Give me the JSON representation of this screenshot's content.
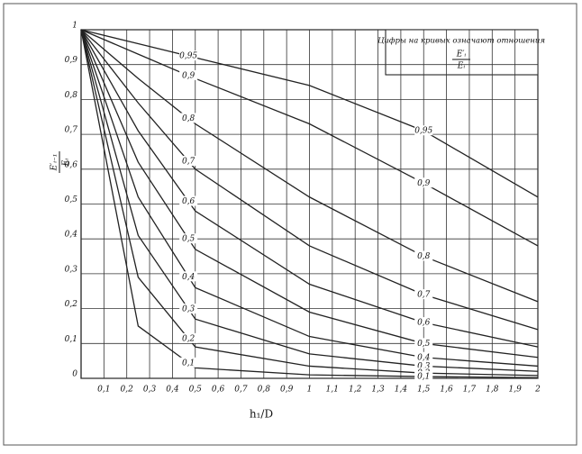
{
  "chart_data": {
    "type": "line",
    "ylabel": {
      "numerator": "E′ᵢ₋₁",
      "denominator": "Eᵢ"
    },
    "xlabel": "h₁/D",
    "annotation": {
      "text": "Цифры на кривых означают отношения",
      "numerator": "E′ᵢ",
      "denominator": "Eᵢ"
    },
    "x": [
      0,
      0.25,
      0.5,
      1,
      1.5,
      2
    ],
    "series": [
      {
        "name": "0,95",
        "color": "#222",
        "values": [
          1,
          0.96,
          0.92,
          0.84,
          0.71,
          0.52
        ]
      },
      {
        "name": "0,9",
        "color": "#222",
        "values": [
          1,
          0.93,
          0.86,
          0.73,
          0.56,
          0.38
        ]
      },
      {
        "name": "0,8",
        "color": "#222",
        "values": [
          1,
          0.86,
          0.73,
          0.52,
          0.35,
          0.22
        ]
      },
      {
        "name": "0,7",
        "color": "#222",
        "values": [
          1,
          0.79,
          0.6,
          0.38,
          0.24,
          0.14
        ]
      },
      {
        "name": "0,6",
        "color": "#222",
        "values": [
          1,
          0.71,
          0.48,
          0.27,
          0.16,
          0.09
        ]
      },
      {
        "name": "0,5",
        "color": "#222",
        "values": [
          1,
          0.62,
          0.37,
          0.19,
          0.1,
          0.06
        ]
      },
      {
        "name": "0,4",
        "color": "#222",
        "values": [
          1,
          0.52,
          0.26,
          0.12,
          0.06,
          0.035
        ]
      },
      {
        "name": "0,3",
        "color": "#222",
        "values": [
          1,
          0.41,
          0.17,
          0.07,
          0.035,
          0.02
        ]
      },
      {
        "name": "0,2",
        "color": "#222",
        "values": [
          1,
          0.29,
          0.09,
          0.035,
          0.015,
          0.008
        ]
      },
      {
        "name": "0,1",
        "color": "#222",
        "values": [
          1,
          0.15,
          0.03,
          0.01,
          0.005,
          0.002
        ]
      }
    ],
    "xlim": [
      0,
      2
    ],
    "ylim": [
      0,
      1
    ],
    "xticks": [
      {
        "value": 0.1,
        "label": "0,1"
      },
      {
        "value": 0.2,
        "label": "0,2"
      },
      {
        "value": 0.3,
        "label": "0,3"
      },
      {
        "value": 0.4,
        "label": "0,4"
      },
      {
        "value": 0.5,
        "label": "0,5"
      },
      {
        "value": 0.6,
        "label": "0,6"
      },
      {
        "value": 0.7,
        "label": "0,7"
      },
      {
        "value": 0.8,
        "label": "0,8"
      },
      {
        "value": 0.9,
        "label": "0,9"
      },
      1,
      {
        "value": 1.1,
        "label": "1,1"
      },
      {
        "value": 1.2,
        "label": "1,2"
      },
      {
        "value": 1.3,
        "label": "1,3"
      },
      {
        "value": 1.4,
        "label": "1,4"
      },
      {
        "value": 1.5,
        "label": "1,5"
      },
      {
        "value": 1.6,
        "label": "1,6"
      },
      {
        "value": 1.7,
        "label": "1,7"
      },
      {
        "value": 1.8,
        "label": "1,8"
      },
      {
        "value": 1.9,
        "label": "1,9"
      },
      2
    ],
    "yticks": [
      0,
      {
        "value": 0.1,
        "label": "0,1"
      },
      {
        "value": 0.2,
        "label": "0,2"
      },
      {
        "value": 0.3,
        "label": "0,3"
      },
      {
        "value": 0.4,
        "label": "0,4"
      },
      {
        "value": 0.5,
        "label": "0,5"
      },
      {
        "value": 0.6,
        "label": "0,6"
      },
      {
        "value": 0.7,
        "label": "0,7"
      },
      {
        "value": 0.8,
        "label": "0,8"
      },
      {
        "value": 0.9,
        "label": "0,9"
      },
      1
    ],
    "grid": true
  }
}
